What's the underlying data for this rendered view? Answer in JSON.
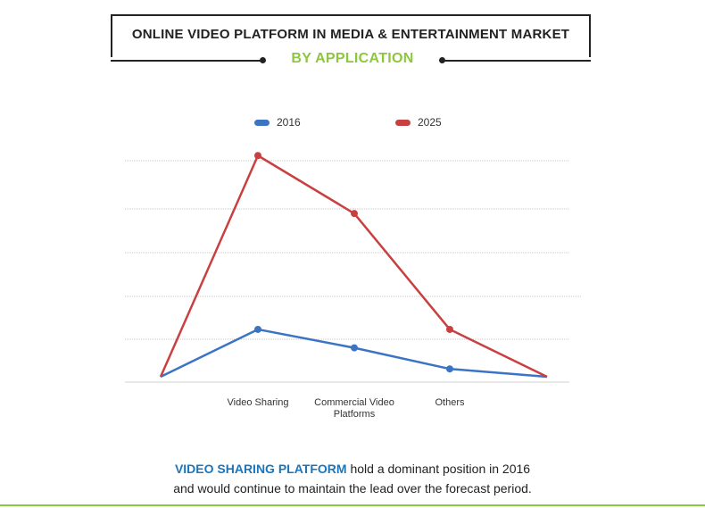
{
  "header": {
    "title": "ONLINE VIDEO PLATFORM IN MEDIA & ENTERTAINMENT MARKET",
    "subtitle": "BY APPLICATION"
  },
  "footer": {
    "highlight": "VIDEO SHARING PLATFORM",
    "line1_rest": " hold a dominant position in 2016",
    "line2": "and would continue to maintain the lead over the forecast period."
  },
  "colors": {
    "series_2016": "#3b73c5",
    "series_2025": "#c94040",
    "accent_green": "#8dc63f",
    "accent_blue": "#1b75bb"
  },
  "chart_data": {
    "type": "line",
    "title": "ONLINE VIDEO PLATFORM IN MEDIA & ENTERTAINMENT MARKET",
    "subtitle": "BY APPLICATION",
    "xlabel": "",
    "ylabel": "",
    "categories": [
      "",
      "Video Sharing",
      "Commercial Video Platforms",
      "Others",
      ""
    ],
    "ylim": [
      0,
      100
    ],
    "grid": true,
    "legend": "top-center",
    "series": [
      {
        "name": "2016",
        "values": [
          1,
          19,
          12,
          4,
          1
        ],
        "markers": [
          false,
          true,
          true,
          true,
          false
        ]
      },
      {
        "name": "2025",
        "values": [
          1,
          85,
          63,
          19,
          1
        ],
        "markers": [
          false,
          true,
          true,
          true,
          false
        ]
      }
    ]
  }
}
